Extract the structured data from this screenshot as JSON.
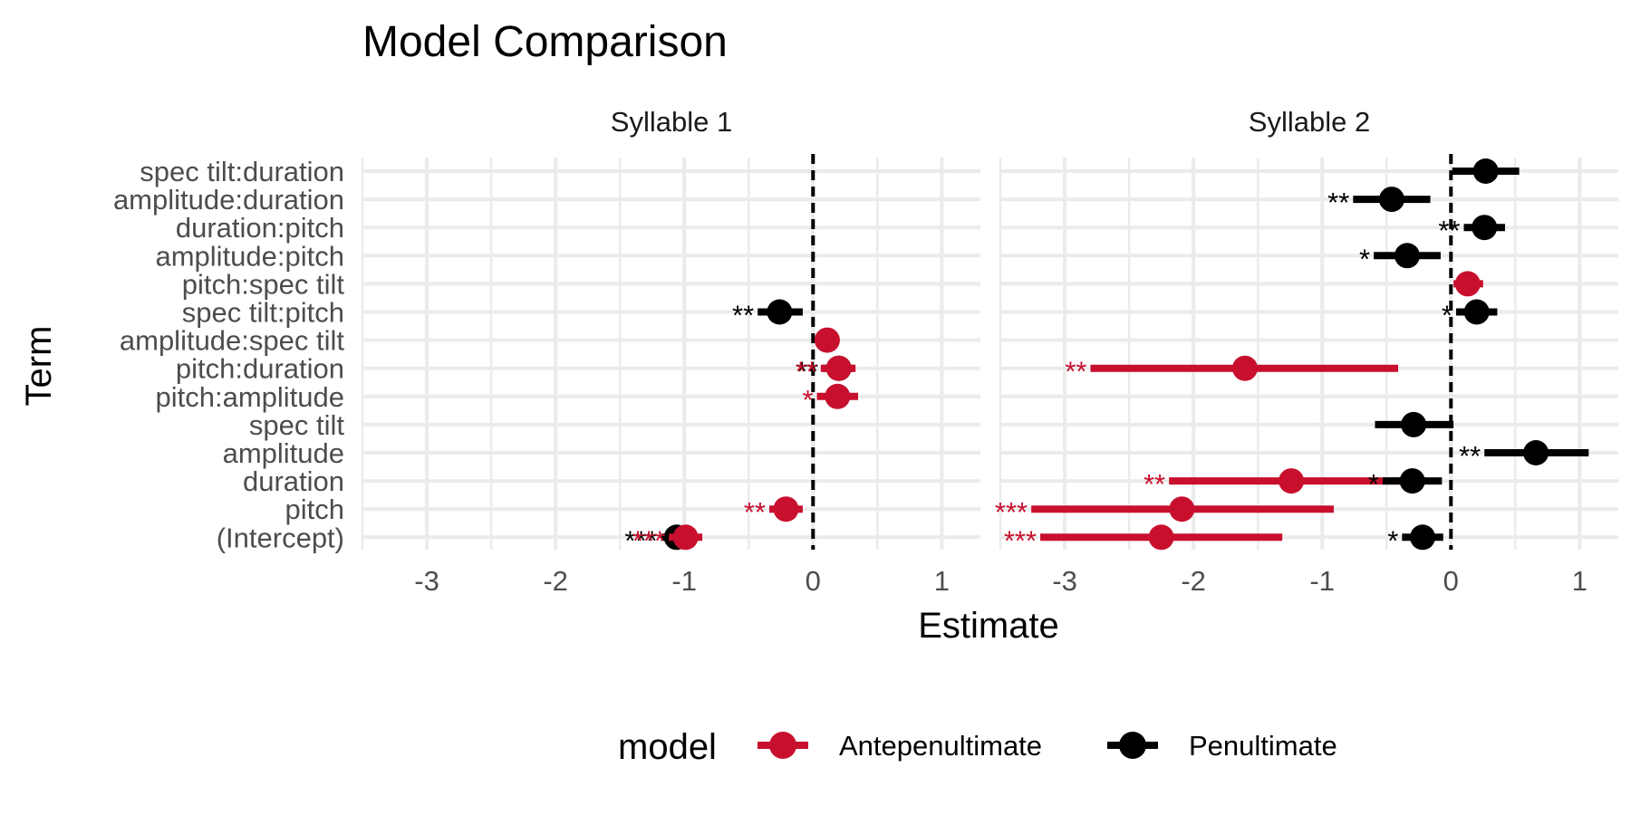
{
  "chart_data": {
    "type": "dot-interval",
    "title": "Model Comparison",
    "xlabel": "Estimate",
    "ylabel": "Term",
    "xlim": [
      -3.5,
      1.3
    ],
    "xticks": [
      -3,
      -2,
      -1,
      0,
      1
    ],
    "grid": true,
    "reference_line": 0,
    "legend": {
      "title": "model",
      "position": "bottom",
      "entries": [
        {
          "name": "Antepenultimate",
          "color": "#c8102e"
        },
        {
          "name": "Penultimate",
          "color": "#000000"
        }
      ]
    },
    "terms": [
      "spec tilt:duration",
      "amplitude:duration",
      "duration:pitch",
      "amplitude:pitch",
      "pitch:spec tilt",
      "spec tilt:pitch",
      "amplitude:spec tilt",
      "pitch:duration",
      "pitch:amplitude",
      "spec tilt",
      "amplitude",
      "duration",
      "pitch",
      "(Intercept)"
    ],
    "panels": [
      {
        "title": "Syllable 1",
        "points": [
          {
            "term": "spec tilt:pitch",
            "model": "Penultimate",
            "estimate": -0.26,
            "low": -0.43,
            "high": -0.08,
            "sig": "**"
          },
          {
            "term": "amplitude:spec tilt",
            "model": "Antepenultimate",
            "estimate": 0.11,
            "low": 0.05,
            "high": 0.17,
            "sig": ""
          },
          {
            "term": "pitch:duration",
            "model": "Penultimate",
            "estimate": 0.2,
            "low": 0.07,
            "high": 0.32,
            "sig": "**"
          },
          {
            "term": "pitch:duration",
            "model": "Antepenultimate",
            "estimate": 0.2,
            "low": 0.06,
            "high": 0.33,
            "sig": "**"
          },
          {
            "term": "pitch:amplitude",
            "model": "Antepenultimate",
            "estimate": 0.19,
            "low": 0.03,
            "high": 0.35,
            "sig": "*"
          },
          {
            "term": "pitch",
            "model": "Antepenultimate",
            "estimate": -0.21,
            "low": -0.34,
            "high": -0.08,
            "sig": "**"
          },
          {
            "term": "(Intercept)",
            "model": "Penultimate",
            "estimate": -1.06,
            "low": -1.18,
            "high": -0.93,
            "sig": "***"
          },
          {
            "term": "(Intercept)",
            "model": "Antepenultimate",
            "estimate": -0.99,
            "low": -1.12,
            "high": -0.86,
            "sig": "***"
          }
        ]
      },
      {
        "title": "Syllable 2",
        "points": [
          {
            "term": "spec tilt:duration",
            "model": "Penultimate",
            "estimate": 0.27,
            "low": 0.01,
            "high": 0.53,
            "sig": ""
          },
          {
            "term": "amplitude:duration",
            "model": "Penultimate",
            "estimate": -0.46,
            "low": -0.76,
            "high": -0.16,
            "sig": "**"
          },
          {
            "term": "duration:pitch",
            "model": "Penultimate",
            "estimate": 0.26,
            "low": 0.1,
            "high": 0.42,
            "sig": "**"
          },
          {
            "term": "amplitude:pitch",
            "model": "Penultimate",
            "estimate": -0.34,
            "low": -0.6,
            "high": -0.08,
            "sig": "*"
          },
          {
            "term": "pitch:spec tilt",
            "model": "Antepenultimate",
            "estimate": 0.13,
            "low": 0.02,
            "high": 0.25,
            "sig": ""
          },
          {
            "term": "spec tilt:pitch",
            "model": "Penultimate",
            "estimate": 0.2,
            "low": 0.04,
            "high": 0.36,
            "sig": "*"
          },
          {
            "term": "pitch:duration",
            "model": "Antepenultimate",
            "estimate": -1.6,
            "low": -2.8,
            "high": -0.41,
            "sig": "**"
          },
          {
            "term": "spec tilt",
            "model": "Penultimate",
            "estimate": -0.29,
            "low": -0.59,
            "high": 0.02,
            "sig": ""
          },
          {
            "term": "amplitude",
            "model": "Penultimate",
            "estimate": 0.66,
            "low": 0.26,
            "high": 1.07,
            "sig": "**"
          },
          {
            "term": "duration",
            "model": "Antepenultimate",
            "estimate": -1.24,
            "low": -2.19,
            "high": -0.3,
            "sig": "**"
          },
          {
            "term": "duration",
            "model": "Penultimate",
            "estimate": -0.3,
            "low": -0.53,
            "high": -0.07,
            "sig": "*"
          },
          {
            "term": "pitch",
            "model": "Antepenultimate",
            "estimate": -2.09,
            "low": -3.26,
            "high": -0.91,
            "sig": "***"
          },
          {
            "term": "(Intercept)",
            "model": "Penultimate",
            "estimate": -0.22,
            "low": -0.38,
            "high": -0.06,
            "sig": "*"
          },
          {
            "term": "(Intercept)",
            "model": "Antepenultimate",
            "estimate": -2.25,
            "low": -3.19,
            "high": -1.31,
            "sig": "***"
          }
        ]
      }
    ]
  }
}
